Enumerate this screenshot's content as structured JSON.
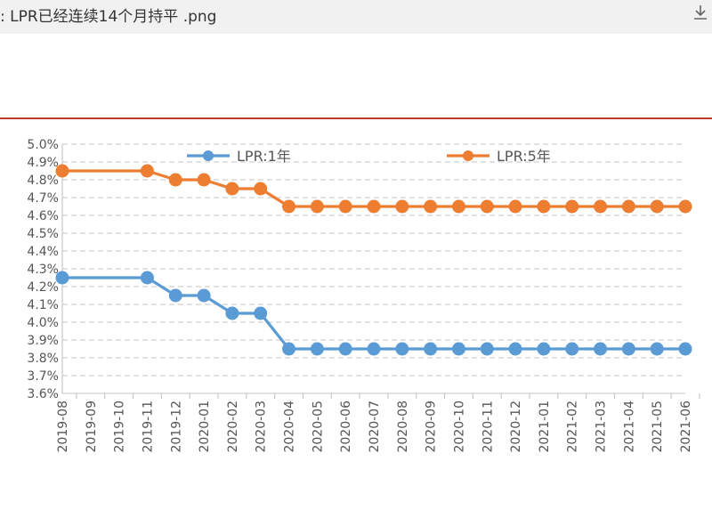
{
  "header": {
    "filename": ": LPR已经连续14个月持平 .png",
    "download_icon": "download-icon"
  },
  "chart_data": {
    "type": "line",
    "categories": [
      "2019-08",
      "2019-09",
      "2019-10",
      "2019-11",
      "2019-12",
      "2020-01",
      "2020-02",
      "2020-03",
      "2020-04",
      "2020-05",
      "2020-06",
      "2020-07",
      "2020-08",
      "2020-09",
      "2020-10",
      "2020-11",
      "2020-12",
      "2021-01",
      "2021-02",
      "2021-03",
      "2021-04",
      "2021-05",
      "2021-06"
    ],
    "series": [
      {
        "name": "LPR:1年",
        "color": "#5b9bd5",
        "values": [
          4.25,
          null,
          null,
          4.25,
          4.15,
          4.15,
          4.05,
          4.05,
          3.85,
          3.85,
          3.85,
          3.85,
          3.85,
          3.85,
          3.85,
          3.85,
          3.85,
          3.85,
          3.85,
          3.85,
          3.85,
          3.85,
          3.85
        ]
      },
      {
        "name": "LPR:5年",
        "color": "#ed7d31",
        "values": [
          4.85,
          null,
          null,
          4.85,
          4.8,
          4.8,
          4.75,
          4.75,
          4.65,
          4.65,
          4.65,
          4.65,
          4.65,
          4.65,
          4.65,
          4.65,
          4.65,
          4.65,
          4.65,
          4.65,
          4.65,
          4.65,
          4.65
        ]
      }
    ],
    "yticks": [
      "3.6%",
      "3.7%",
      "3.8%",
      "3.9%",
      "4.0%",
      "4.1%",
      "4.2%",
      "4.3%",
      "4.4%",
      "4.5%",
      "4.6%",
      "4.7%",
      "4.8%",
      "4.9%",
      "5.0%"
    ],
    "ylim": [
      3.6,
      5.0
    ],
    "grid": true,
    "legend": "top"
  }
}
